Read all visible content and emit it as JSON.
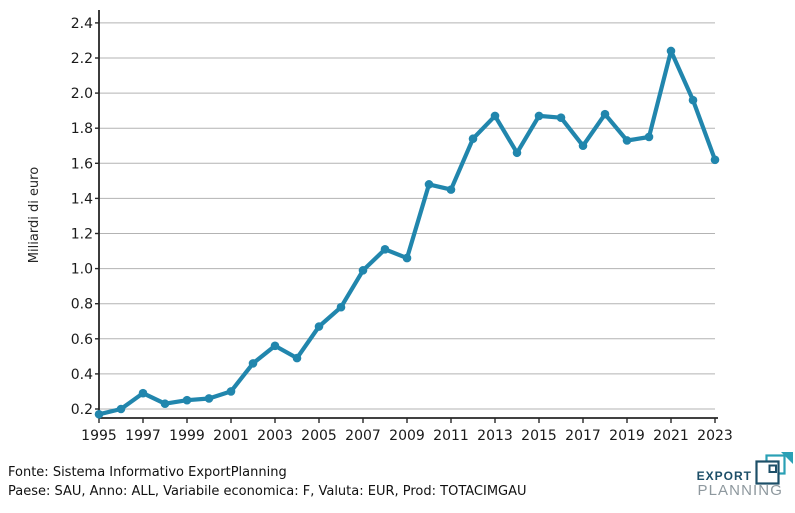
{
  "chart_data": {
    "type": "line",
    "title": "",
    "xlabel": "",
    "ylabel": "Miliardi di euro",
    "x": [
      1995,
      1996,
      1997,
      1998,
      1999,
      2000,
      2001,
      2002,
      2003,
      2004,
      2005,
      2006,
      2007,
      2008,
      2009,
      2010,
      2011,
      2012,
      2013,
      2014,
      2015,
      2016,
      2017,
      2018,
      2019,
      2020,
      2021,
      2022,
      2023
    ],
    "values": [
      0.17,
      0.2,
      0.29,
      0.23,
      0.25,
      0.26,
      0.3,
      0.46,
      0.56,
      0.49,
      0.67,
      0.78,
      0.99,
      1.11,
      1.06,
      1.48,
      1.45,
      1.74,
      1.87,
      1.66,
      1.87,
      1.86,
      1.7,
      1.88,
      1.73,
      1.75,
      2.24,
      1.96,
      1.62
    ],
    "yticks": [
      0.2,
      0.4,
      0.6,
      0.8,
      1.0,
      1.2,
      1.4,
      1.6,
      1.8,
      2.0,
      2.2,
      2.4
    ],
    "xticks": [
      1995,
      1997,
      1999,
      2001,
      2003,
      2005,
      2007,
      2009,
      2011,
      2013,
      2015,
      2017,
      2019,
      2021,
      2023
    ],
    "ylim": [
      0.13,
      2.47
    ],
    "grid": "horizontal",
    "legend": "none",
    "marker": "circle"
  },
  "colors": {
    "line": "#2186ad",
    "grid": "#b3b3b3",
    "axis": "#262626",
    "tick_text": "#1a1a1a"
  },
  "footer": {
    "line1": "Fonte: Sistema Informativo ExportPlanning",
    "line2": "Paese: SAU, Anno: ALL, Variabile economica: F, Valuta: EUR, Prod: TOTACIMGAU"
  },
  "logo": {
    "word1": "EXPORT",
    "word2": "PLANNING",
    "navy": "#1d4f68",
    "teal": "#2aa0b5",
    "gray": "#8e989e"
  }
}
